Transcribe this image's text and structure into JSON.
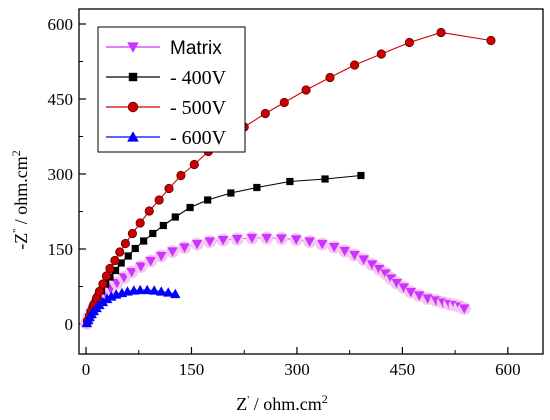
{
  "chart_data": {
    "type": "scatter",
    "xlabel": "Z' / ohm.cm2",
    "ylabel": "-Z'' / ohm.cm2",
    "xlim": [
      -10,
      650
    ],
    "ylim": [
      -60,
      630
    ],
    "xticks": [
      0,
      150,
      300,
      450,
      600
    ],
    "yticks": [
      0,
      150,
      300,
      450,
      600
    ],
    "legend_position": "top-left",
    "series": [
      {
        "name": "Matrix",
        "color": "#cc33ff",
        "marker": "triangle-down",
        "points": [
          [
            1,
            2
          ],
          [
            2,
            6
          ],
          [
            3,
            10
          ],
          [
            5,
            15
          ],
          [
            7,
            21
          ],
          [
            10,
            28
          ],
          [
            13,
            35
          ],
          [
            17,
            43
          ],
          [
            22,
            52
          ],
          [
            28,
            61
          ],
          [
            35,
            71
          ],
          [
            44,
            82
          ],
          [
            54,
            93
          ],
          [
            65,
            104
          ],
          [
            78,
            115
          ],
          [
            92,
            126
          ],
          [
            107,
            136
          ],
          [
            123,
            145
          ],
          [
            140,
            153
          ],
          [
            158,
            160
          ],
          [
            176,
            165
          ],
          [
            195,
            168
          ],
          [
            215,
            170
          ],
          [
            236,
            172
          ],
          [
            257,
            172
          ],
          [
            278,
            171
          ],
          [
            299,
            169
          ],
          [
            318,
            165
          ],
          [
            336,
            160
          ],
          [
            353,
            154
          ],
          [
            368,
            146
          ],
          [
            382,
            138
          ],
          [
            395,
            129
          ],
          [
            407,
            119
          ],
          [
            417,
            110
          ],
          [
            426,
            101
          ],
          [
            434,
            91
          ],
          [
            442,
            82
          ],
          [
            452,
            73
          ],
          [
            462,
            64
          ],
          [
            474,
            57
          ],
          [
            486,
            51
          ],
          [
            498,
            47
          ],
          [
            508,
            43
          ],
          [
            517,
            40
          ],
          [
            525,
            38
          ],
          [
            532,
            35
          ],
          [
            538,
            31
          ]
        ]
      },
      {
        "name": "- 400V",
        "color": "#000000",
        "marker": "square",
        "points": [
          [
            2,
            5
          ],
          [
            4,
            13
          ],
          [
            6,
            22
          ],
          [
            9,
            32
          ],
          [
            13,
            43
          ],
          [
            17,
            55
          ],
          [
            22,
            67
          ],
          [
            28,
            80
          ],
          [
            34,
            94
          ],
          [
            42,
            107
          ],
          [
            50,
            122
          ],
          [
            60,
            136
          ],
          [
            70,
            151
          ],
          [
            82,
            166
          ],
          [
            95,
            181
          ],
          [
            110,
            197
          ],
          [
            127,
            214
          ],
          [
            148,
            233
          ],
          [
            173,
            248
          ],
          [
            206,
            262
          ],
          [
            243,
            273
          ],
          [
            290,
            285
          ],
          [
            340,
            290
          ],
          [
            391,
            297
          ]
        ]
      },
      {
        "name": "- 500V",
        "color": "#cc0000",
        "marker": "circle",
        "points": [
          [
            2,
            6
          ],
          [
            5,
            16
          ],
          [
            8,
            27
          ],
          [
            11,
            39
          ],
          [
            15,
            52
          ],
          [
            19,
            65
          ],
          [
            24,
            80
          ],
          [
            29,
            96
          ],
          [
            34,
            111
          ],
          [
            41,
            127
          ],
          [
            48,
            144
          ],
          [
            56,
            161
          ],
          [
            66,
            181
          ],
          [
            77,
            202
          ],
          [
            90,
            226
          ],
          [
            104,
            248
          ],
          [
            118,
            271
          ],
          [
            135,
            297
          ],
          [
            154,
            319
          ],
          [
            174,
            345
          ],
          [
            199,
            370
          ],
          [
            225,
            394
          ],
          [
            255,
            421
          ],
          [
            282,
            443
          ],
          [
            313,
            468
          ],
          [
            347,
            493
          ],
          [
            382,
            518
          ],
          [
            420,
            540
          ],
          [
            460,
            563
          ],
          [
            505,
            583
          ],
          [
            576,
            567
          ]
        ]
      },
      {
        "name": "- 600V",
        "color": "#0000ff",
        "marker": "triangle-up",
        "points": [
          [
            1,
            2
          ],
          [
            3,
            8
          ],
          [
            5,
            14
          ],
          [
            8,
            20
          ],
          [
            11,
            26
          ],
          [
            15,
            32
          ],
          [
            19,
            38
          ],
          [
            24,
            44
          ],
          [
            30,
            50
          ],
          [
            36,
            55
          ],
          [
            43,
            59
          ],
          [
            51,
            62
          ],
          [
            59,
            65
          ],
          [
            68,
            67
          ],
          [
            77,
            68
          ],
          [
            87,
            68
          ],
          [
            97,
            67
          ],
          [
            107,
            65
          ],
          [
            117,
            63
          ],
          [
            127,
            60
          ]
        ]
      }
    ]
  }
}
